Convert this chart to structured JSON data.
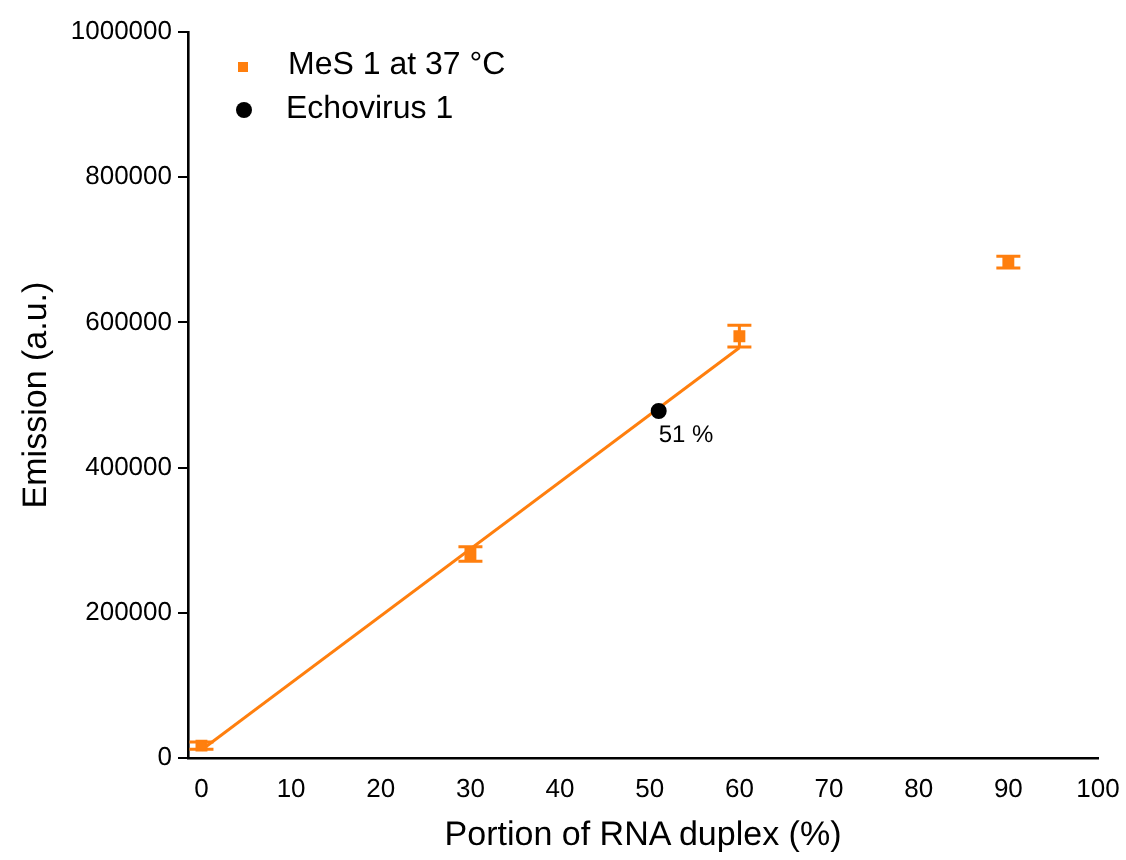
{
  "chart_data": {
    "type": "scatter",
    "xlabel": "Portion of RNA duplex (%)",
    "ylabel": "Emission (a.u.)",
    "xlim": [
      -1.5,
      100
    ],
    "xticks": [
      0,
      10,
      20,
      30,
      40,
      50,
      60,
      70,
      80,
      90,
      100
    ],
    "ylim": [
      0,
      1000000
    ],
    "yticks": [
      0,
      200000,
      400000,
      600000,
      800000,
      1000000
    ],
    "grid": false,
    "legend": "top left",
    "series": [
      {
        "name": "MeS 1 at 37 °C",
        "color": "#ff7f0e",
        "marker": "square",
        "x": [
          0,
          30,
          60,
          90
        ],
        "values": [
          17000,
          281000,
          581000,
          683000
        ],
        "errors": [
          5000,
          10000,
          15000,
          8000
        ]
      },
      {
        "name": "Echovirus 1",
        "color": "#000000",
        "marker": "circle",
        "x": [
          51
        ],
        "values": [
          478000
        ]
      },
      {
        "type": "line",
        "color": "#ff7f0e",
        "marker": "none",
        "x": [
          0,
          60
        ],
        "values": [
          11000,
          565000
        ]
      }
    ],
    "annotations": [
      {
        "text": "51 %",
        "x": 51,
        "y": 478000
      }
    ]
  }
}
